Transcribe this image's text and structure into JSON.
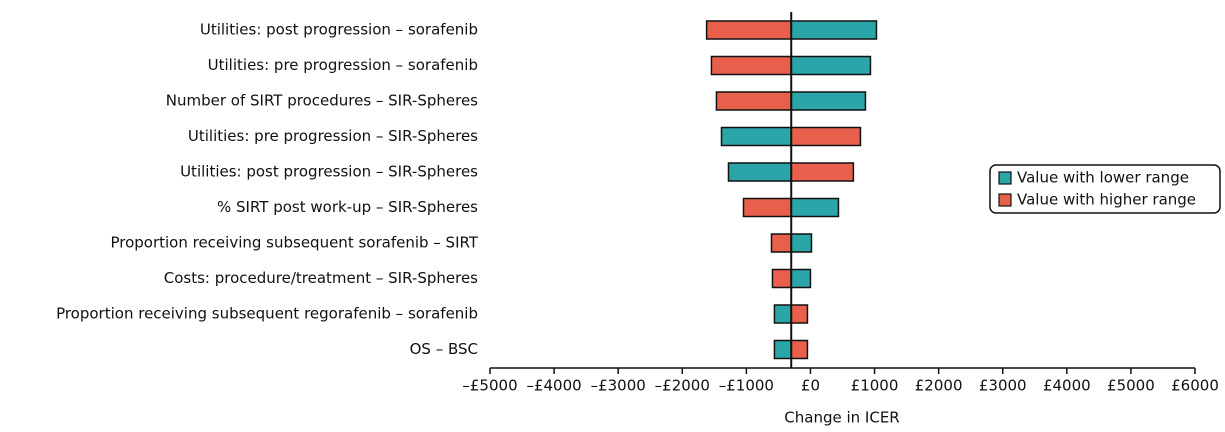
{
  "chart_data": {
    "type": "tornado",
    "x_label": "Change in ICER",
    "categories": [
      "Utilities: post progression – sorafenib",
      "Utilities: pre progression – sorafenib",
      "Number of SIRT procedures – SIR-Spheres",
      "Utilities: pre progression – SIR-Spheres",
      "Utilities: post progression – SIR-Spheres",
      "% SIRT post work-up – SIR-Spheres",
      "Proportion receiving subsequent sorafenib – SIRT",
      "Costs: procedure/treatment – SIR-Spheres",
      "Proportion receiving subsequent regorafenib – sorafenib",
      "OS – BSC"
    ],
    "baseline": -300,
    "series": [
      {
        "name": "Value with lower range",
        "color": "#2aa5a8",
        "values": [
          1030,
          936,
          858,
          -1388,
          -1279,
          437,
          16,
          0,
          -562,
          -562
        ]
      },
      {
        "name": "Value with higher range",
        "color": "#e8604c",
        "values": [
          -1620,
          -1545,
          -1467,
          780,
          670,
          -1045,
          -608,
          -593,
          -47,
          -47
        ]
      }
    ],
    "xlim": [
      -5000,
      6000
    ],
    "xticks": [
      {
        "value": -5000,
        "label": "–£5000"
      },
      {
        "value": -4000,
        "label": "–£4000"
      },
      {
        "value": -3000,
        "label": "–£3000"
      },
      {
        "value": -2000,
        "label": "–£2000"
      },
      {
        "value": -1000,
        "label": "–£1000"
      },
      {
        "value": 0,
        "label": "£0"
      },
      {
        "value": 1000,
        "label": "£1000"
      },
      {
        "value": 2000,
        "label": "£2000"
      },
      {
        "value": 3000,
        "label": "£3000"
      },
      {
        "value": 4000,
        "label": "£4000"
      },
      {
        "value": 5000,
        "label": "£5000"
      },
      {
        "value": 6000,
        "label": "£6000"
      }
    ],
    "legend": "right"
  }
}
